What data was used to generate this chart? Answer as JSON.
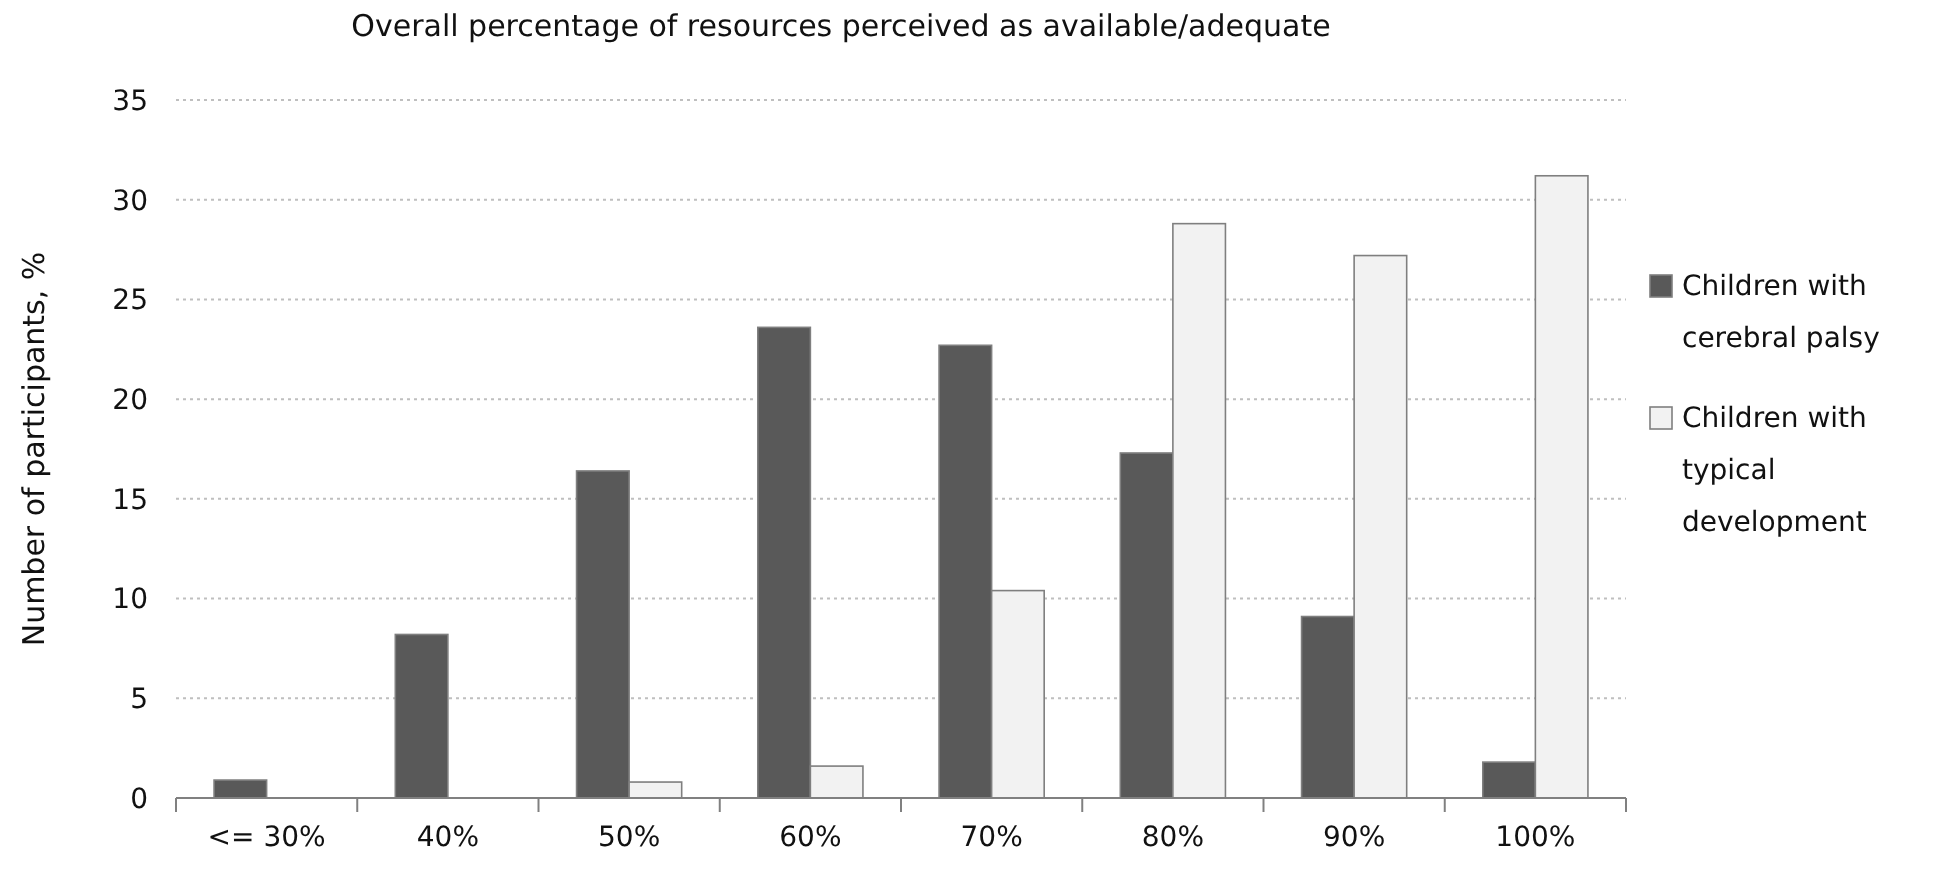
{
  "chart_data": {
    "type": "bar",
    "title": "Overall percentage of resources perceived as available/adequate",
    "ylabel": "Number of participants, %",
    "categories": [
      "<= 30%",
      "40%",
      "50%",
      "60%",
      "70%",
      "80%",
      "90%",
      "100%"
    ],
    "series": [
      {
        "name": "Children with cerebral palsy",
        "color": "#595959",
        "values": [
          0.9,
          8.2,
          16.4,
          23.6,
          22.7,
          17.3,
          9.1,
          1.8
        ]
      },
      {
        "name": "Children with typical development",
        "color": "#f2f2f2",
        "values": [
          0,
          0,
          0.8,
          1.6,
          10.4,
          28.8,
          27.2,
          31.2
        ]
      }
    ],
    "ylim": [
      0,
      35
    ],
    "yticks": [
      0,
      5,
      10,
      15,
      20,
      25,
      30,
      35
    ],
    "grid": "y",
    "legend": "right"
  }
}
